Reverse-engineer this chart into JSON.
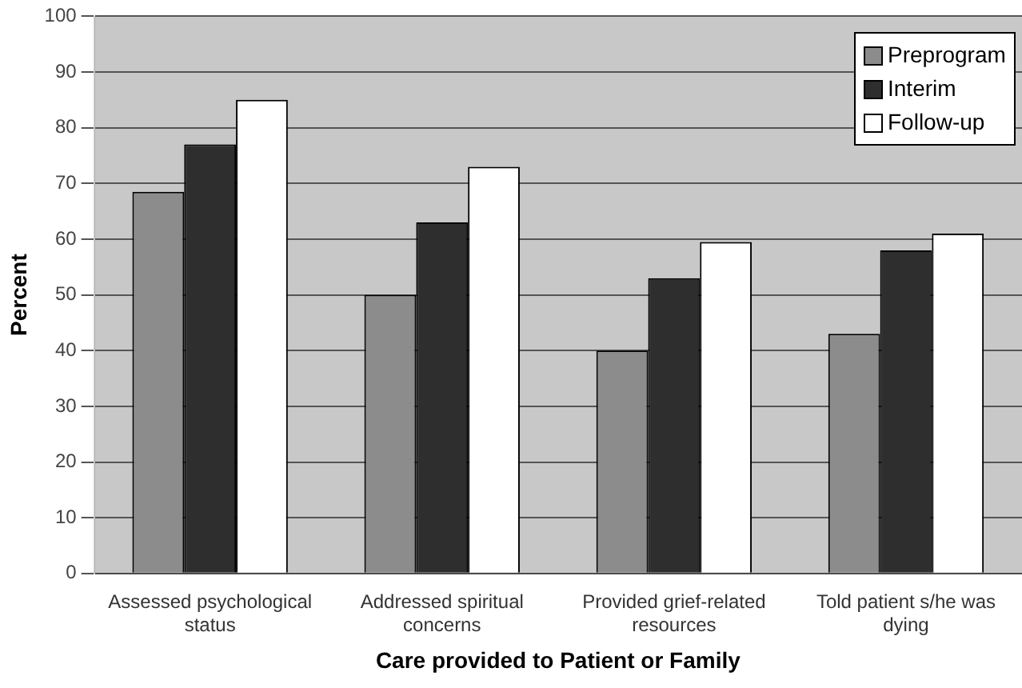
{
  "chart_data": {
    "type": "bar",
    "xlabel": "Care provided to Patient or Family",
    "ylabel": "Percent",
    "categories": [
      "Assessed psychological status",
      "Addressed spiritual concerns",
      "Provided grief-related resources",
      "Told patient s/he was dying"
    ],
    "series": [
      {
        "name": "Preprogram",
        "color": "#8c8c8c",
        "values": [
          68.5,
          50,
          40,
          43
        ]
      },
      {
        "name": "Interim",
        "color": "#2e2e2e",
        "values": [
          77,
          63,
          53,
          58
        ]
      },
      {
        "name": "Follow-up",
        "color": "#ffffff",
        "values": [
          85,
          73,
          59.5,
          61
        ]
      }
    ],
    "ylim": [
      0,
      100
    ],
    "yticks": [
      0,
      10,
      20,
      30,
      40,
      50,
      60,
      70,
      80,
      90,
      100
    ],
    "grid": "y",
    "legend": "top right"
  }
}
